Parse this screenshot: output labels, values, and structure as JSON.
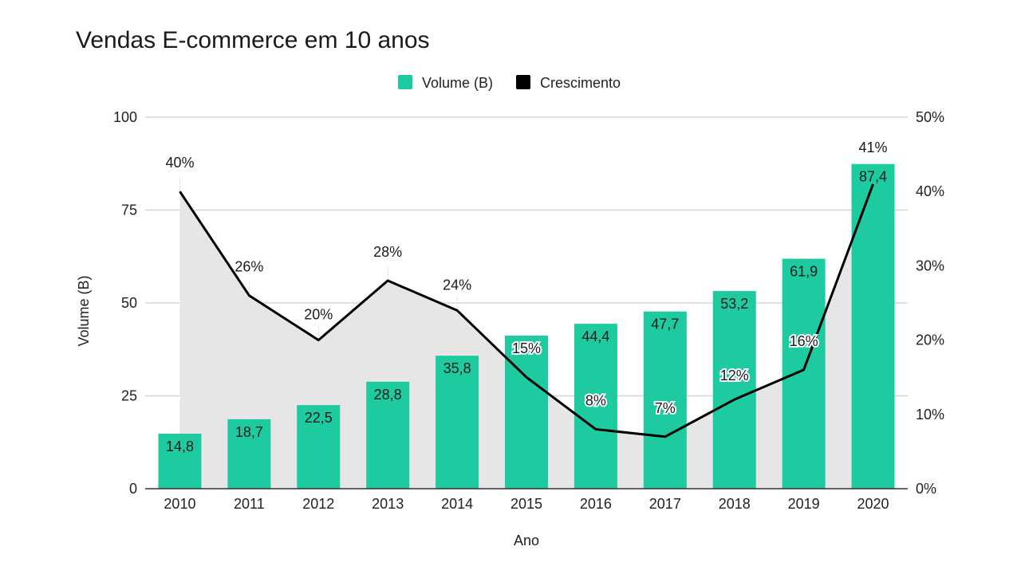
{
  "chart_data": {
    "type": "bar",
    "title": "Vendas E-commerce em 10 anos",
    "xlabel": "Ano",
    "ylabel": "Volume (B)",
    "categories": [
      "2010",
      "2011",
      "2012",
      "2013",
      "2014",
      "2015",
      "2016",
      "2017",
      "2018",
      "2019",
      "2020"
    ],
    "series": [
      {
        "name": "Volume (B)",
        "type": "bar",
        "axis": "left",
        "values": [
          14.8,
          18.7,
          22.5,
          28.8,
          35.8,
          41.2,
          44.4,
          47.7,
          53.2,
          61.9,
          87.4
        ],
        "labels": [
          "14,8",
          "18,7",
          "22,5",
          "28,8",
          "35,8",
          "",
          "44,4",
          "47,7",
          "53,2",
          "61,9",
          "87,4"
        ],
        "color": "#1ecba1"
      },
      {
        "name": "Crescimento",
        "type": "line",
        "axis": "right",
        "values": [
          40,
          26,
          20,
          28,
          24,
          15,
          8,
          7,
          12,
          16,
          41
        ],
        "labels": [
          "40%",
          "26%",
          "20%",
          "28%",
          "24%",
          "15%",
          "8%",
          "7%",
          "12%",
          "16%",
          "41%"
        ],
        "color": "#000000",
        "area_fill": "#e6e6e6"
      }
    ],
    "y_left": {
      "min": 0,
      "max": 100,
      "ticks": [
        "0",
        "25",
        "50",
        "75",
        "100"
      ]
    },
    "y_right": {
      "min": 0,
      "max": 50,
      "ticks": [
        "0%",
        "10%",
        "20%",
        "30%",
        "40%",
        "50%"
      ]
    },
    "grid": true,
    "legend": "top-center"
  }
}
